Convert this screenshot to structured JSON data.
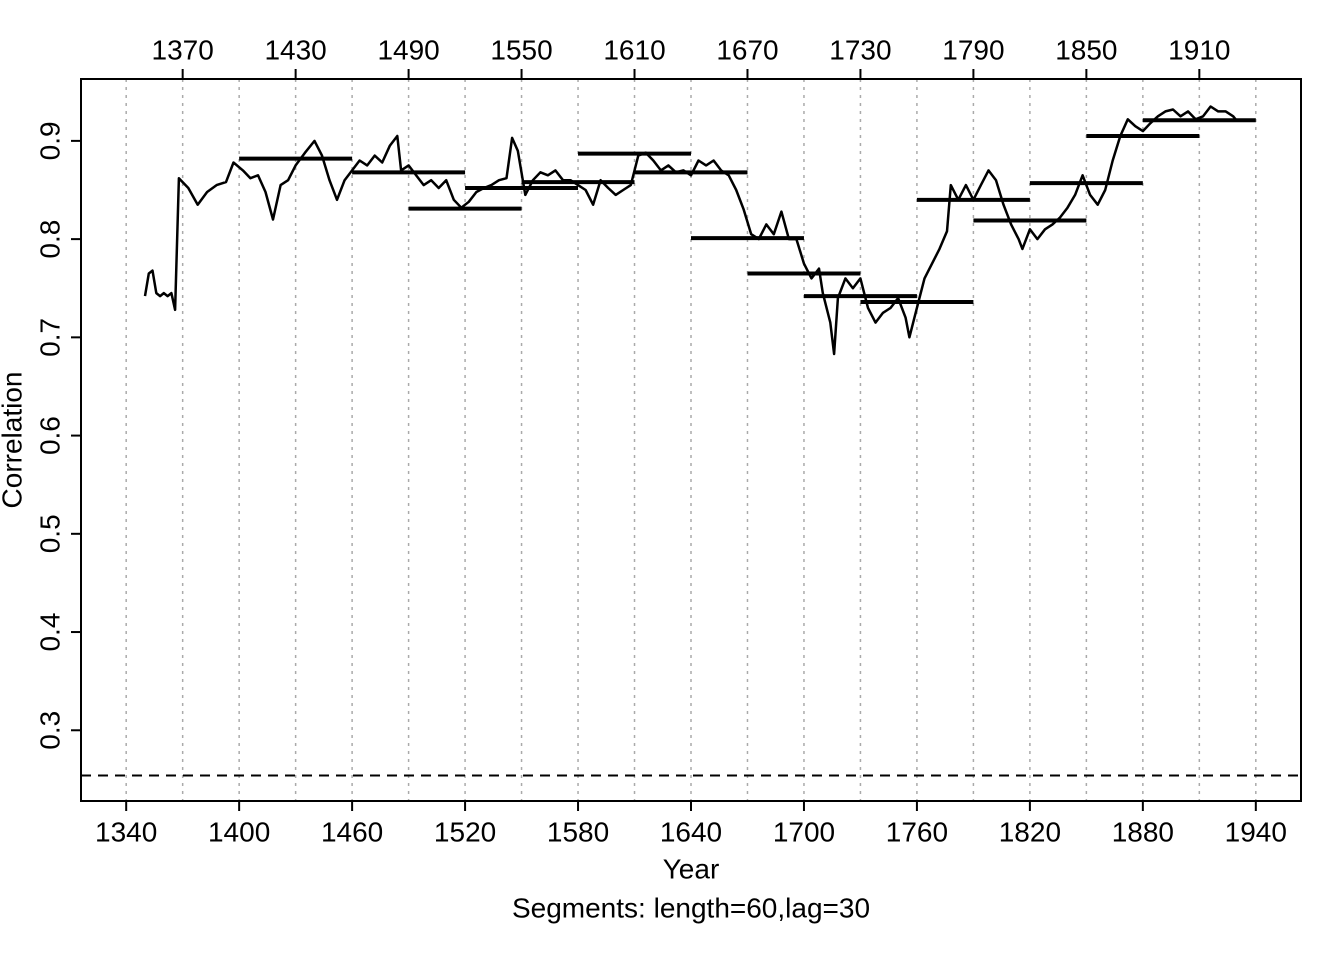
{
  "chart_data": {
    "type": "line",
    "x_label": "Year",
    "y_label": "Correlation",
    "subtitle": "Segments: length=60,lag=30",
    "xlim": [
      1316,
      1964
    ],
    "ylim": [
      0.228,
      0.963
    ],
    "xticks": [
      1340,
      1400,
      1460,
      1520,
      1580,
      1640,
      1700,
      1760,
      1820,
      1880,
      1940
    ],
    "x2ticks": [
      1370,
      1430,
      1490,
      1550,
      1610,
      1670,
      1730,
      1790,
      1850,
      1910
    ],
    "yticks": [
      0.3,
      0.4,
      0.5,
      0.6,
      0.7,
      0.8,
      0.9
    ],
    "grid": true,
    "color": "#000000",
    "critical_value": 0.254,
    "x": [
      1350,
      1352,
      1354,
      1356,
      1358,
      1360,
      1362,
      1364,
      1366,
      1368,
      1373,
      1378,
      1383,
      1388,
      1393,
      1397,
      1402,
      1406,
      1410,
      1414,
      1418,
      1422,
      1426,
      1430,
      1435,
      1440,
      1444,
      1448,
      1452,
      1456,
      1460,
      1464,
      1468,
      1472,
      1476,
      1480,
      1484,
      1486,
      1490,
      1494,
      1498,
      1502,
      1506,
      1510,
      1514,
      1518,
      1522,
      1526,
      1530,
      1534,
      1538,
      1542,
      1545,
      1548,
      1552,
      1556,
      1560,
      1564,
      1568,
      1572,
      1576,
      1580,
      1584,
      1588,
      1592,
      1596,
      1600,
      1604,
      1608,
      1612,
      1616,
      1620,
      1624,
      1628,
      1632,
      1636,
      1640,
      1644,
      1648,
      1652,
      1656,
      1660,
      1664,
      1668,
      1672,
      1676,
      1680,
      1684,
      1688,
      1692,
      1696,
      1700,
      1704,
      1708,
      1710,
      1714,
      1716,
      1718,
      1722,
      1726,
      1730,
      1734,
      1738,
      1742,
      1746,
      1750,
      1754,
      1756,
      1760,
      1764,
      1768,
      1772,
      1776,
      1778,
      1782,
      1786,
      1790,
      1794,
      1798,
      1802,
      1806,
      1810,
      1814,
      1816,
      1820,
      1824,
      1828,
      1832,
      1836,
      1840,
      1844,
      1848,
      1852,
      1856,
      1860,
      1864,
      1868,
      1872,
      1876,
      1880,
      1884,
      1888,
      1892,
      1896,
      1900,
      1904,
      1908,
      1912,
      1916,
      1920,
      1924,
      1928,
      1930
    ],
    "values": [
      0.742,
      0.765,
      0.768,
      0.745,
      0.742,
      0.745,
      0.742,
      0.745,
      0.728,
      0.862,
      0.852,
      0.835,
      0.848,
      0.855,
      0.858,
      0.878,
      0.87,
      0.862,
      0.865,
      0.848,
      0.82,
      0.855,
      0.86,
      0.875,
      0.888,
      0.9,
      0.885,
      0.86,
      0.84,
      0.86,
      0.87,
      0.88,
      0.875,
      0.885,
      0.878,
      0.895,
      0.905,
      0.87,
      0.875,
      0.865,
      0.855,
      0.86,
      0.852,
      0.86,
      0.84,
      0.832,
      0.838,
      0.848,
      0.852,
      0.855,
      0.86,
      0.862,
      0.903,
      0.89,
      0.845,
      0.86,
      0.868,
      0.865,
      0.87,
      0.86,
      0.86,
      0.855,
      0.85,
      0.835,
      0.86,
      0.852,
      0.845,
      0.85,
      0.855,
      0.885,
      0.888,
      0.88,
      0.87,
      0.875,
      0.868,
      0.87,
      0.865,
      0.88,
      0.875,
      0.88,
      0.87,
      0.865,
      0.85,
      0.83,
      0.805,
      0.8,
      0.815,
      0.805,
      0.828,
      0.8,
      0.8,
      0.775,
      0.76,
      0.77,
      0.745,
      0.715,
      0.683,
      0.74,
      0.76,
      0.75,
      0.76,
      0.73,
      0.715,
      0.725,
      0.73,
      0.74,
      0.72,
      0.7,
      0.73,
      0.76,
      0.775,
      0.79,
      0.808,
      0.855,
      0.84,
      0.855,
      0.84,
      0.855,
      0.87,
      0.86,
      0.835,
      0.815,
      0.8,
      0.79,
      0.81,
      0.8,
      0.81,
      0.815,
      0.822,
      0.832,
      0.845,
      0.865,
      0.845,
      0.835,
      0.85,
      0.88,
      0.905,
      0.922,
      0.915,
      0.91,
      0.918,
      0.925,
      0.93,
      0.932,
      0.925,
      0.93,
      0.922,
      0.925,
      0.935,
      0.93,
      0.93,
      0.925,
      0.92
    ],
    "segments": [
      {
        "start": 1400,
        "end": 1460,
        "value": 0.882
      },
      {
        "start": 1460,
        "end": 1520,
        "value": 0.868
      },
      {
        "start": 1490,
        "end": 1550,
        "value": 0.831
      },
      {
        "start": 1520,
        "end": 1580,
        "value": 0.852
      },
      {
        "start": 1550,
        "end": 1610,
        "value": 0.858
      },
      {
        "start": 1580,
        "end": 1640,
        "value": 0.887
      },
      {
        "start": 1610,
        "end": 1670,
        "value": 0.868
      },
      {
        "start": 1640,
        "end": 1700,
        "value": 0.801
      },
      {
        "start": 1670,
        "end": 1730,
        "value": 0.765
      },
      {
        "start": 1700,
        "end": 1760,
        "value": 0.742
      },
      {
        "start": 1730,
        "end": 1790,
        "value": 0.736
      },
      {
        "start": 1760,
        "end": 1820,
        "value": 0.84
      },
      {
        "start": 1790,
        "end": 1850,
        "value": 0.819
      },
      {
        "start": 1820,
        "end": 1880,
        "value": 0.857
      },
      {
        "start": 1850,
        "end": 1910,
        "value": 0.905
      },
      {
        "start": 1880,
        "end": 1940,
        "value": 0.921
      }
    ]
  }
}
